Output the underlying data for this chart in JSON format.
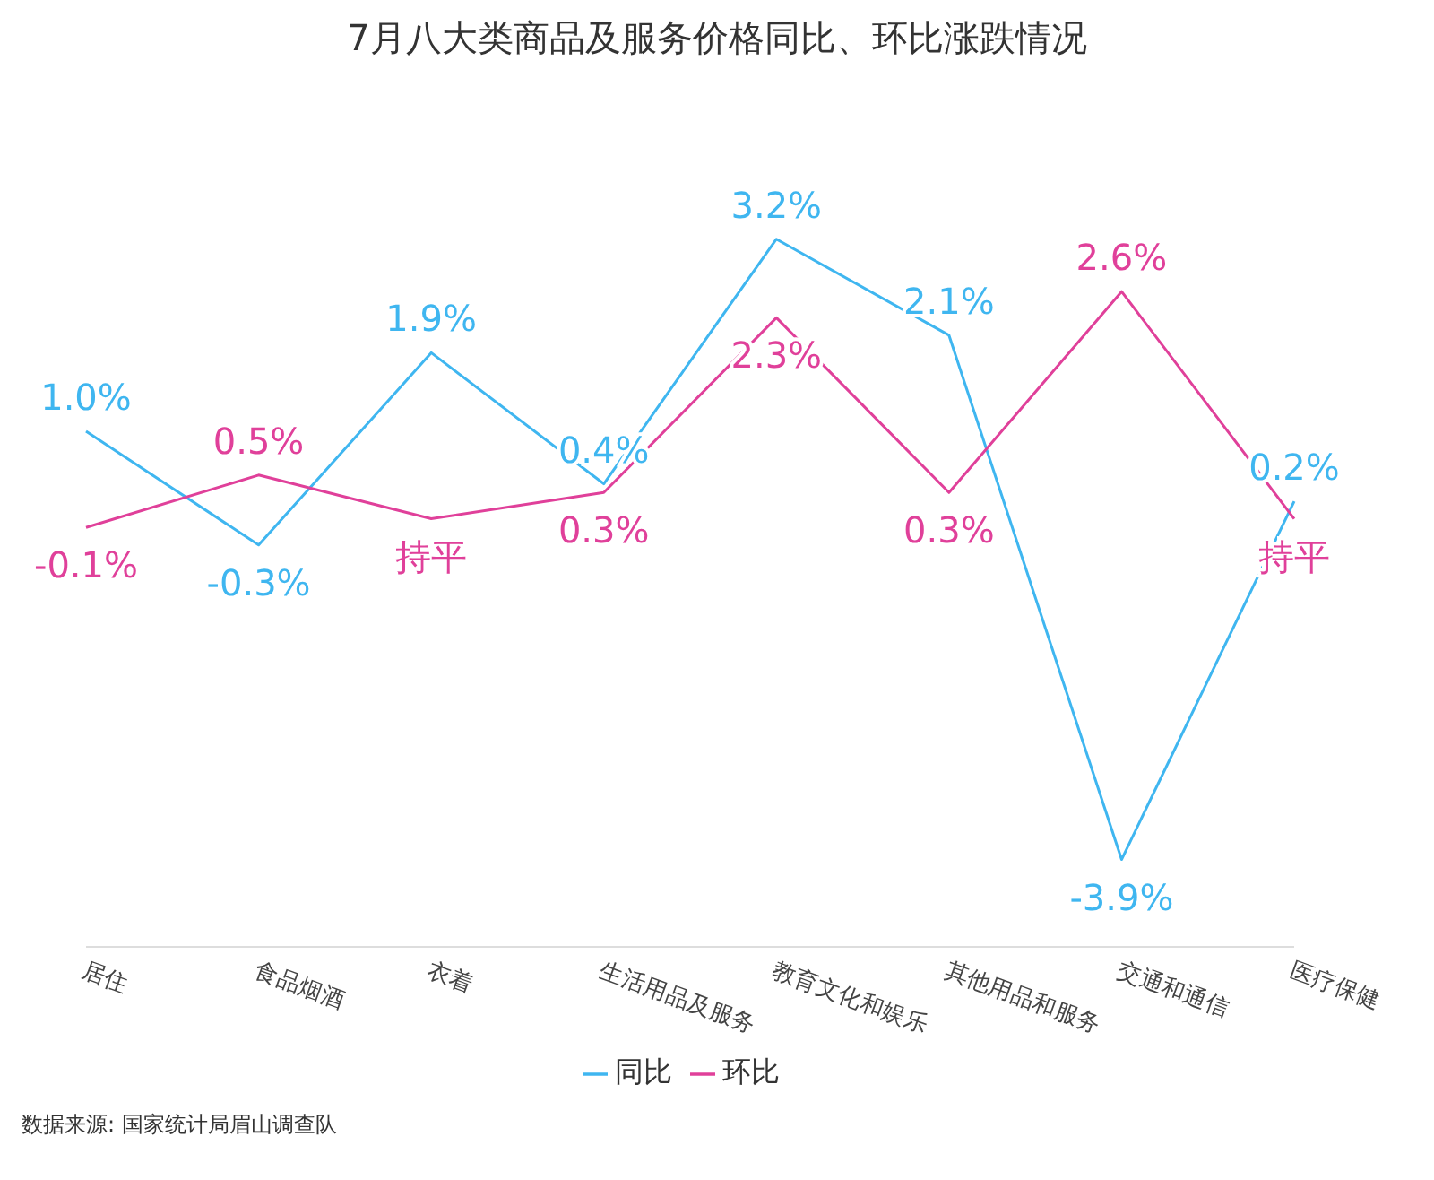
{
  "chart_data": {
    "type": "line",
    "title": "7月八大类商品及服务价格同比、环比涨跌情况",
    "categories": [
      "居住",
      "食品烟酒",
      "衣着",
      "生活用品及服务",
      "教育文化和娱乐",
      "其他用品和服务",
      "交通和通信",
      "医疗保健"
    ],
    "series": [
      {
        "name": "同比",
        "color": "#3fb6f0",
        "values": [
          1.0,
          -0.3,
          1.9,
          0.4,
          3.2,
          2.1,
          -3.9,
          0.2
        ],
        "value_labels": [
          "1.0%",
          "-0.3%",
          "1.9%",
          "0.4%",
          "3.2%",
          "2.1%",
          "-3.9%",
          "0.2%"
        ]
      },
      {
        "name": "环比",
        "color": "#e0409a",
        "values": [
          -0.1,
          0.5,
          0,
          0.3,
          2.3,
          0.3,
          2.6,
          0
        ],
        "value_labels": [
          "-0.1%",
          "0.5%",
          "持平",
          "0.3%",
          "2.3%",
          "0.3%",
          "2.6%",
          "持平"
        ]
      }
    ],
    "tick_labels": "x",
    "marker": "none",
    "legend": "bottom",
    "grid": false,
    "annotations": [
      "数据来源: 国家统计局眉山调查队"
    ]
  }
}
